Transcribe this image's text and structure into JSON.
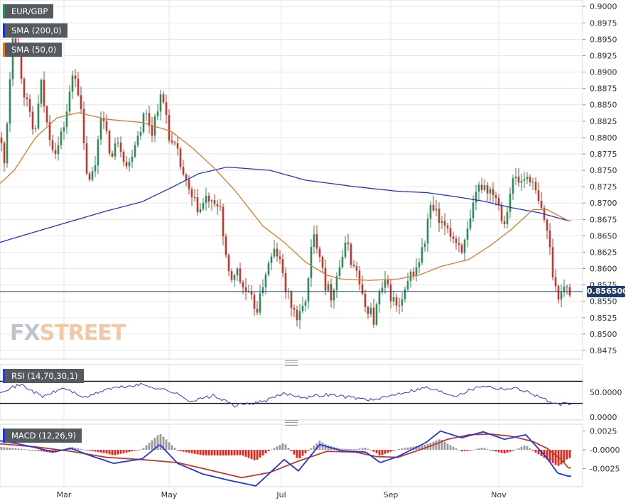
{
  "symbol_label": "EUR/GBP",
  "sma200_label": "SMA (200,0)",
  "sma50_label": "SMA (50,0)",
  "rsi_label": "RSI (14,70,30,1)",
  "macd_label": "MACD (12,26,9)",
  "last_price_label": "0.856500",
  "watermark": {
    "fx": "FX",
    "street": "STREET"
  },
  "colors": {
    "up": "#2e8b57",
    "down": "#c0392b",
    "sma200": "#2233cc",
    "sma50": "#e0782a",
    "rsi": "#2a3fd0",
    "macd": "#2233dd",
    "signal": "#c0392b",
    "hist_pos": "#9a9a9a",
    "hist_neg": "#e8251b",
    "grid": "#e3e6ea",
    "price_tag": "#1f3a6b"
  },
  "chart_data": [
    {
      "type": "candlestick",
      "title": "EUR/GBP",
      "x_labels": [
        "Mar",
        "May",
        "Jul",
        "Sep",
        "Nov"
      ],
      "y_ticks": [
        "0.9000",
        "0.8975",
        "0.8950",
        "0.8925",
        "0.8900",
        "0.8875",
        "0.8850",
        "0.8825",
        "0.8800",
        "0.8775",
        "0.8750",
        "0.8725",
        "0.8700",
        "0.8675",
        "0.8650",
        "0.8625",
        "0.8600",
        "0.8575",
        "0.8550",
        "0.8525",
        "0.8500",
        "0.8475"
      ],
      "ylim": [
        0.8462,
        0.901
      ],
      "last_price": 0.8565,
      "close_path": [
        [
          0,
          0.88
        ],
        [
          6,
          0.876
        ],
        [
          18,
          0.896
        ],
        [
          24,
          0.895
        ],
        [
          32,
          0.888
        ],
        [
          40,
          0.884
        ],
        [
          48,
          0.88
        ],
        [
          58,
          0.888
        ],
        [
          66,
          0.882
        ],
        [
          74,
          0.879
        ],
        [
          80,
          0.878
        ],
        [
          88,
          0.881
        ],
        [
          96,
          0.885
        ],
        [
          104,
          0.891
        ],
        [
          112,
          0.886
        ],
        [
          120,
          0.876
        ],
        [
          126,
          0.873
        ],
        [
          134,
          0.876
        ],
        [
          142,
          0.884
        ],
        [
          150,
          0.88
        ],
        [
          158,
          0.877
        ],
        [
          166,
          0.88
        ],
        [
          172,
          0.878
        ],
        [
          180,
          0.875
        ],
        [
          188,
          0.879
        ],
        [
          196,
          0.881
        ],
        [
          204,
          0.884
        ],
        [
          214,
          0.881
        ],
        [
          224,
          0.886
        ],
        [
          232,
          0.885
        ],
        [
          240,
          0.879
        ],
        [
          248,
          0.878
        ],
        [
          256,
          0.875
        ],
        [
          264,
          0.872
        ],
        [
          272,
          0.87
        ],
        [
          282,
          0.869
        ],
        [
          292,
          0.871
        ],
        [
          300,
          0.869
        ],
        [
          310,
          0.87
        ],
        [
          316,
          0.862
        ],
        [
          324,
          0.858
        ],
        [
          332,
          0.86
        ],
        [
          340,
          0.8575
        ],
        [
          348,
          0.856
        ],
        [
          356,
          0.8545
        ],
        [
          364,
          0.854
        ],
        [
          372,
          0.859
        ],
        [
          380,
          0.861
        ],
        [
          388,
          0.863
        ],
        [
          396,
          0.86
        ],
        [
          404,
          0.856
        ],
        [
          412,
          0.854
        ],
        [
          420,
          0.852
        ],
        [
          428,
          0.8545
        ],
        [
          434,
          0.858
        ],
        [
          440,
          0.865
        ],
        [
          446,
          0.864
        ],
        [
          452,
          0.862
        ],
        [
          458,
          0.8575
        ],
        [
          466,
          0.856
        ],
        [
          474,
          0.859
        ],
        [
          482,
          0.862
        ],
        [
          490,
          0.864
        ],
        [
          496,
          0.86
        ],
        [
          502,
          0.86
        ],
        [
          508,
          0.856
        ],
        [
          514,
          0.854
        ],
        [
          520,
          0.854
        ],
        [
          526,
          0.852
        ],
        [
          534,
          0.856
        ],
        [
          542,
          0.8575
        ],
        [
          550,
          0.856
        ],
        [
          556,
          0.8545
        ],
        [
          562,
          0.854
        ],
        [
          570,
          0.856
        ],
        [
          578,
          0.859
        ],
        [
          586,
          0.86
        ],
        [
          592,
          0.862
        ],
        [
          598,
          0.864
        ],
        [
          604,
          0.869
        ],
        [
          612,
          0.869
        ],
        [
          620,
          0.866
        ],
        [
          628,
          0.867
        ],
        [
          636,
          0.865
        ],
        [
          644,
          0.864
        ],
        [
          652,
          0.863
        ],
        [
          660,
          0.866
        ],
        [
          666,
          0.869
        ],
        [
          672,
          0.872
        ],
        [
          680,
          0.873
        ],
        [
          688,
          0.872
        ],
        [
          696,
          0.872
        ],
        [
          704,
          0.869
        ],
        [
          710,
          0.867
        ],
        [
          716,
          0.871
        ],
        [
          724,
          0.874
        ],
        [
          732,
          0.873
        ],
        [
          740,
          0.874
        ],
        [
          746,
          0.874
        ],
        [
          752,
          0.872
        ],
        [
          758,
          0.87
        ],
        [
          764,
          0.868
        ],
        [
          770,
          0.866
        ],
        [
          776,
          0.861
        ],
        [
          782,
          0.857
        ],
        [
          788,
          0.856
        ],
        [
          794,
          0.857
        ],
        [
          800,
          0.8565
        ]
      ],
      "sma200": [
        [
          0,
          0.864
        ],
        [
          40,
          0.8653
        ],
        [
          90,
          0.8669
        ],
        [
          150,
          0.8688
        ],
        [
          200,
          0.8702
        ],
        [
          240,
          0.8723
        ],
        [
          280,
          0.8745
        ],
        [
          320,
          0.8755
        ],
        [
          380,
          0.875
        ],
        [
          430,
          0.8735
        ],
        [
          500,
          0.8725
        ],
        [
          560,
          0.8718
        ],
        [
          600,
          0.8716
        ],
        [
          640,
          0.871
        ],
        [
          680,
          0.8703
        ],
        [
          720,
          0.8693
        ],
        [
          760,
          0.8685
        ],
        [
          800,
          0.8673
        ]
      ],
      "sma50": [
        [
          0,
          0.873
        ],
        [
          20,
          0.875
        ],
        [
          50,
          0.88
        ],
        [
          80,
          0.883
        ],
        [
          110,
          0.8838
        ],
        [
          150,
          0.8828
        ],
        [
          200,
          0.8823
        ],
        [
          240,
          0.881
        ],
        [
          270,
          0.8785
        ],
        [
          300,
          0.8755
        ],
        [
          330,
          0.872
        ],
        [
          370,
          0.8665
        ],
        [
          400,
          0.864
        ],
        [
          430,
          0.861
        ],
        [
          460,
          0.859
        ],
        [
          480,
          0.8584
        ],
        [
          520,
          0.8582
        ],
        [
          560,
          0.8584
        ],
        [
          590,
          0.859
        ],
        [
          620,
          0.8603
        ],
        [
          660,
          0.8614
        ],
        [
          690,
          0.8635
        ],
        [
          720,
          0.866
        ],
        [
          750,
          0.869
        ],
        [
          770,
          0.869
        ],
        [
          800,
          0.8673
        ]
      ]
    },
    {
      "type": "line",
      "title": "RSI (14,70,30,1)",
      "y_ticks": [
        "50.0000",
        "0.0000"
      ],
      "ylim": [
        0,
        100
      ],
      "levels": [
        70,
        30
      ],
      "rsi": [
        [
          0,
          52
        ],
        [
          30,
          64
        ],
        [
          60,
          42
        ],
        [
          90,
          58
        ],
        [
          120,
          40
        ],
        [
          150,
          56
        ],
        [
          200,
          64
        ],
        [
          240,
          52
        ],
        [
          270,
          34
        ],
        [
          300,
          44
        ],
        [
          330,
          26
        ],
        [
          370,
          33
        ],
        [
          400,
          48
        ],
        [
          430,
          41
        ],
        [
          460,
          46
        ],
        [
          500,
          40
        ],
        [
          530,
          36
        ],
        [
          560,
          48
        ],
        [
          600,
          59
        ],
        [
          640,
          44
        ],
        [
          680,
          63
        ],
        [
          700,
          57
        ],
        [
          730,
          57
        ],
        [
          760,
          42
        ],
        [
          780,
          28
        ],
        [
          800,
          29
        ]
      ]
    },
    {
      "type": "bar",
      "title": "MACD (12,26,9)",
      "y_ticks": [
        "0.0025",
        "-0.0000",
        "-0.0025"
      ],
      "ylim": [
        -0.0049,
        0.0034
      ],
      "macd": [
        [
          0,
          0.0012
        ],
        [
          25,
          0.0008
        ],
        [
          50,
          0.0003
        ],
        [
          75,
          -0.0003
        ],
        [
          100,
          0.0002
        ],
        [
          125,
          -0.0007
        ],
        [
          160,
          -0.0018
        ],
        [
          200,
          -0.0012
        ],
        [
          225,
          0.0007
        ],
        [
          250,
          -0.0018
        ],
        [
          285,
          -0.0032
        ],
        [
          320,
          -0.004
        ],
        [
          360,
          -0.0048
        ],
        [
          400,
          -0.0013
        ],
        [
          420,
          -0.0028
        ],
        [
          450,
          0.0007
        ],
        [
          480,
          -0.0001
        ],
        [
          515,
          -0.0003
        ],
        [
          535,
          -0.0017
        ],
        [
          560,
          -0.0009
        ],
        [
          600,
          0.001
        ],
        [
          620,
          0.0025
        ],
        [
          650,
          0.0016
        ],
        [
          680,
          0.0024
        ],
        [
          710,
          0.0014
        ],
        [
          740,
          0.002
        ],
        [
          770,
          -0.0011
        ],
        [
          785,
          -0.0031
        ],
        [
          800,
          -0.0035
        ]
      ],
      "signal": [
        [
          0,
          0.0008
        ],
        [
          50,
          0.0004
        ],
        [
          100,
          -0.0002
        ],
        [
          150,
          -0.001
        ],
        [
          200,
          -0.0013
        ],
        [
          250,
          -0.0017
        ],
        [
          300,
          -0.0028
        ],
        [
          340,
          -0.0037
        ],
        [
          380,
          -0.003
        ],
        [
          420,
          -0.0015
        ],
        [
          460,
          -0.0002
        ],
        [
          500,
          -0.0003
        ],
        [
          530,
          -0.0009
        ],
        [
          560,
          -0.001
        ],
        [
          600,
          0.0003
        ],
        [
          630,
          0.0014
        ],
        [
          660,
          0.002
        ],
        [
          690,
          0.0021
        ],
        [
          720,
          0.0018
        ],
        [
          750,
          0.0011
        ],
        [
          770,
          0.0002
        ],
        [
          790,
          -0.0013
        ],
        [
          800,
          -0.0024
        ]
      ]
    }
  ]
}
